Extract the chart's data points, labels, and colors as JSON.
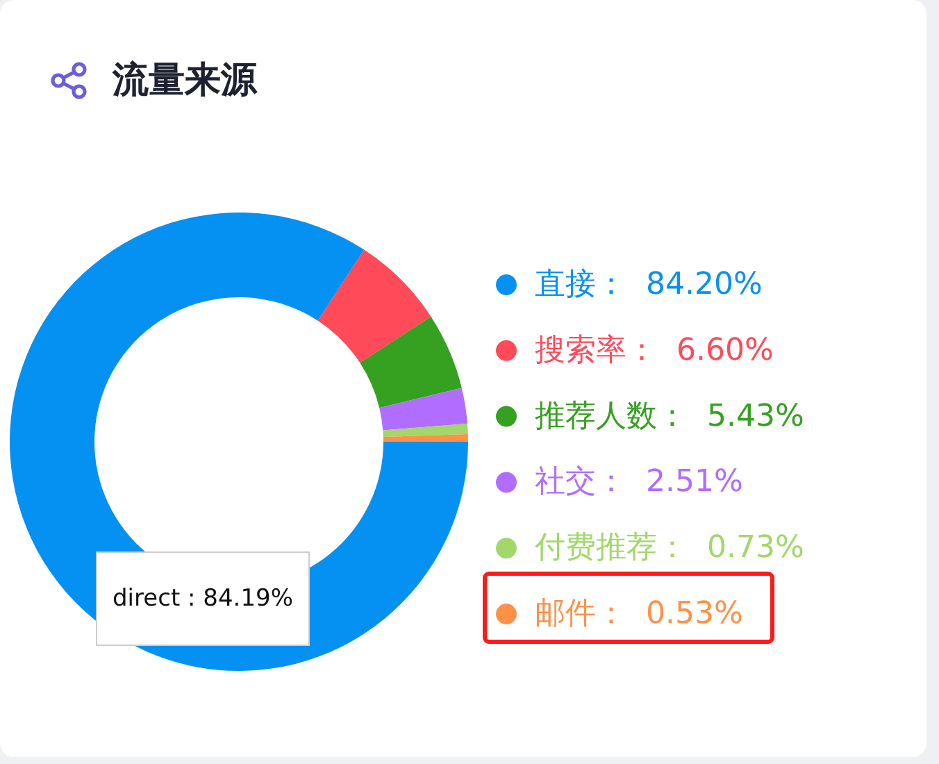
{
  "chart_data": {
    "type": "donut",
    "title": "流量来源",
    "categories": [
      "直接",
      "搜索率",
      "推荐人数",
      "社交",
      "付费推荐",
      "邮件"
    ],
    "values": [
      84.2,
      6.6,
      5.43,
      2.51,
      0.73,
      0.53
    ],
    "colors": [
      "#0591f2",
      "#ff4a5a",
      "#36a021",
      "#b06dff",
      "#a2d76a",
      "#ff9147"
    ],
    "value_labels": [
      "84.20%",
      "6.60%",
      "5.43%",
      "2.51%",
      "0.73%",
      "0.53%"
    ],
    "legend": "right",
    "annotations": [
      "direct : 84.19%"
    ]
  }
}
